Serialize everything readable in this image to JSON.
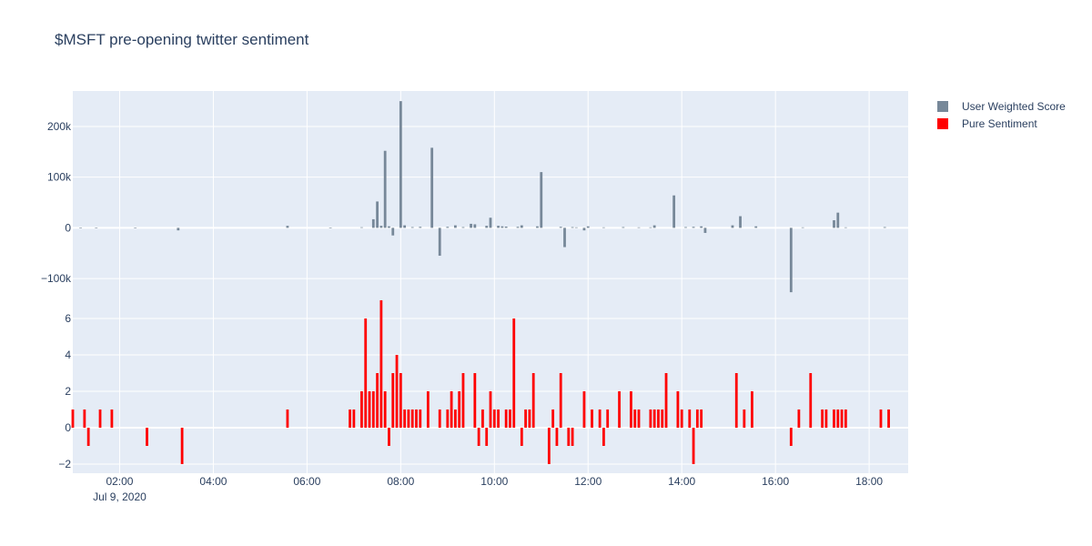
{
  "chart_data": {
    "type": "bar",
    "title": "$MSFT pre-opening twitter sentiment",
    "date_label": "Jul 9, 2020",
    "x_range": [
      "01:00",
      "18:50"
    ],
    "x_ticks": [
      "02:00",
      "04:00",
      "06:00",
      "08:00",
      "10:00",
      "12:00",
      "14:00",
      "16:00",
      "18:00"
    ],
    "legend_position": "top-right",
    "grid": true,
    "colors": {
      "plot_bg": "#e5ecf6",
      "grid": "#ffffff",
      "weighted": "#778899",
      "pure": "#ff0000"
    },
    "subplots": [
      {
        "series_name": "User Weighted Score",
        "ylim": [
          -125000,
          270000
        ],
        "y_ticks": [
          -100000,
          0,
          100000,
          200000
        ],
        "y_tick_labels": [
          "−100k",
          "0",
          "100k",
          "200k"
        ],
        "points": [
          {
            "x": "01:10",
            "y": 600
          },
          {
            "x": "01:30",
            "y": -800
          },
          {
            "x": "02:20",
            "y": 400
          },
          {
            "x": "03:15",
            "y": -5000
          },
          {
            "x": "05:35",
            "y": 4000
          },
          {
            "x": "06:30",
            "y": 600
          },
          {
            "x": "07:10",
            "y": 1200
          },
          {
            "x": "07:25",
            "y": 17000
          },
          {
            "x": "07:30",
            "y": 52000
          },
          {
            "x": "07:35",
            "y": 4000
          },
          {
            "x": "07:40",
            "y": 152000
          },
          {
            "x": "07:45",
            "y": 3000
          },
          {
            "x": "07:50",
            "y": -15000
          },
          {
            "x": "08:00",
            "y": 250000
          },
          {
            "x": "08:05",
            "y": 5000
          },
          {
            "x": "08:15",
            "y": 1500
          },
          {
            "x": "08:25",
            "y": 2000
          },
          {
            "x": "08:40",
            "y": 158000
          },
          {
            "x": "08:50",
            "y": -55000
          },
          {
            "x": "09:00",
            "y": 2000
          },
          {
            "x": "09:10",
            "y": 5000
          },
          {
            "x": "09:20",
            "y": 1500
          },
          {
            "x": "09:30",
            "y": 8000
          },
          {
            "x": "09:35",
            "y": 7000
          },
          {
            "x": "09:50",
            "y": 4000
          },
          {
            "x": "09:55",
            "y": 20000
          },
          {
            "x": "10:05",
            "y": 4000
          },
          {
            "x": "10:10",
            "y": 3000
          },
          {
            "x": "10:15",
            "y": 2500
          },
          {
            "x": "10:30",
            "y": 2000
          },
          {
            "x": "10:35",
            "y": 5000
          },
          {
            "x": "10:55",
            "y": 3000
          },
          {
            "x": "11:00",
            "y": 110000
          },
          {
            "x": "11:25",
            "y": 2000
          },
          {
            "x": "11:30",
            "y": -38000
          },
          {
            "x": "11:40",
            "y": 1500
          },
          {
            "x": "11:45",
            "y": 1000
          },
          {
            "x": "11:55",
            "y": -5000
          },
          {
            "x": "12:00",
            "y": 3000
          },
          {
            "x": "12:20",
            "y": 1000
          },
          {
            "x": "12:45",
            "y": 1500
          },
          {
            "x": "13:05",
            "y": 1000
          },
          {
            "x": "13:20",
            "y": 1000
          },
          {
            "x": "13:25",
            "y": 5000
          },
          {
            "x": "13:50",
            "y": 64000
          },
          {
            "x": "14:05",
            "y": 1500
          },
          {
            "x": "14:15",
            "y": 2000
          },
          {
            "x": "14:25",
            "y": 3000
          },
          {
            "x": "14:30",
            "y": -10000
          },
          {
            "x": "15:05",
            "y": 5000
          },
          {
            "x": "15:15",
            "y": 23000
          },
          {
            "x": "15:35",
            "y": 3000
          },
          {
            "x": "16:20",
            "y": -127000
          },
          {
            "x": "16:35",
            "y": 1000
          },
          {
            "x": "17:15",
            "y": 15000
          },
          {
            "x": "17:20",
            "y": 30000
          },
          {
            "x": "17:30",
            "y": 1000
          },
          {
            "x": "18:20",
            "y": 1500
          }
        ]
      },
      {
        "series_name": "Pure Sentiment",
        "ylim": [
          -2.5,
          7.5
        ],
        "y_ticks": [
          -2,
          0,
          2,
          4,
          6
        ],
        "y_tick_labels": [
          "−2",
          "0",
          "2",
          "4",
          "6"
        ],
        "points": [
          {
            "x": "01:00",
            "y": 1
          },
          {
            "x": "01:15",
            "y": 1
          },
          {
            "x": "01:20",
            "y": -1
          },
          {
            "x": "01:35",
            "y": 1
          },
          {
            "x": "01:50",
            "y": 1
          },
          {
            "x": "02:35",
            "y": -1
          },
          {
            "x": "03:20",
            "y": -2
          },
          {
            "x": "05:35",
            "y": 1
          },
          {
            "x": "06:55",
            "y": 1
          },
          {
            "x": "07:00",
            "y": 1
          },
          {
            "x": "07:10",
            "y": 2
          },
          {
            "x": "07:15",
            "y": 6
          },
          {
            "x": "07:20",
            "y": 2
          },
          {
            "x": "07:25",
            "y": 2
          },
          {
            "x": "07:30",
            "y": 3
          },
          {
            "x": "07:35",
            "y": 7
          },
          {
            "x": "07:40",
            "y": 2
          },
          {
            "x": "07:45",
            "y": -1
          },
          {
            "x": "07:50",
            "y": 3
          },
          {
            "x": "07:55",
            "y": 4
          },
          {
            "x": "08:00",
            "y": 3
          },
          {
            "x": "08:05",
            "y": 1
          },
          {
            "x": "08:10",
            "y": 1
          },
          {
            "x": "08:15",
            "y": 1
          },
          {
            "x": "08:20",
            "y": 1
          },
          {
            "x": "08:25",
            "y": 1
          },
          {
            "x": "08:35",
            "y": 2
          },
          {
            "x": "08:50",
            "y": 1
          },
          {
            "x": "09:00",
            "y": 1
          },
          {
            "x": "09:05",
            "y": 2
          },
          {
            "x": "09:10",
            "y": 1
          },
          {
            "x": "09:15",
            "y": 2
          },
          {
            "x": "09:20",
            "y": 3
          },
          {
            "x": "09:35",
            "y": 3
          },
          {
            "x": "09:40",
            "y": -1
          },
          {
            "x": "09:45",
            "y": 1
          },
          {
            "x": "09:50",
            "y": -1
          },
          {
            "x": "09:55",
            "y": 2
          },
          {
            "x": "10:00",
            "y": 1
          },
          {
            "x": "10:05",
            "y": 1
          },
          {
            "x": "10:15",
            "y": 1
          },
          {
            "x": "10:20",
            "y": 1
          },
          {
            "x": "10:25",
            "y": 6
          },
          {
            "x": "10:35",
            "y": -1
          },
          {
            "x": "10:40",
            "y": 1
          },
          {
            "x": "10:45",
            "y": 1
          },
          {
            "x": "10:50",
            "y": 3
          },
          {
            "x": "11:10",
            "y": -2
          },
          {
            "x": "11:15",
            "y": 1
          },
          {
            "x": "11:20",
            "y": -1
          },
          {
            "x": "11:25",
            "y": 3
          },
          {
            "x": "11:35",
            "y": -1
          },
          {
            "x": "11:40",
            "y": -1
          },
          {
            "x": "11:55",
            "y": 2
          },
          {
            "x": "12:05",
            "y": 1
          },
          {
            "x": "12:15",
            "y": 1
          },
          {
            "x": "12:20",
            "y": -1
          },
          {
            "x": "12:25",
            "y": 1
          },
          {
            "x": "12:40",
            "y": 2
          },
          {
            "x": "12:55",
            "y": 2
          },
          {
            "x": "13:00",
            "y": 1
          },
          {
            "x": "13:05",
            "y": 1
          },
          {
            "x": "13:20",
            "y": 1
          },
          {
            "x": "13:25",
            "y": 1
          },
          {
            "x": "13:30",
            "y": 1
          },
          {
            "x": "13:35",
            "y": 1
          },
          {
            "x": "13:40",
            "y": 3
          },
          {
            "x": "13:55",
            "y": 2
          },
          {
            "x": "14:00",
            "y": 1
          },
          {
            "x": "14:10",
            "y": 1
          },
          {
            "x": "14:15",
            "y": -2
          },
          {
            "x": "14:20",
            "y": 1
          },
          {
            "x": "14:25",
            "y": 1
          },
          {
            "x": "15:10",
            "y": 3
          },
          {
            "x": "15:20",
            "y": 1
          },
          {
            "x": "15:30",
            "y": 2
          },
          {
            "x": "16:20",
            "y": -1
          },
          {
            "x": "16:30",
            "y": 1
          },
          {
            "x": "16:45",
            "y": 3
          },
          {
            "x": "17:00",
            "y": 1
          },
          {
            "x": "17:05",
            "y": 1
          },
          {
            "x": "17:15",
            "y": 1
          },
          {
            "x": "17:20",
            "y": 1
          },
          {
            "x": "17:25",
            "y": 1
          },
          {
            "x": "17:30",
            "y": 1
          },
          {
            "x": "18:15",
            "y": 1
          },
          {
            "x": "18:25",
            "y": 1
          }
        ]
      }
    ]
  }
}
